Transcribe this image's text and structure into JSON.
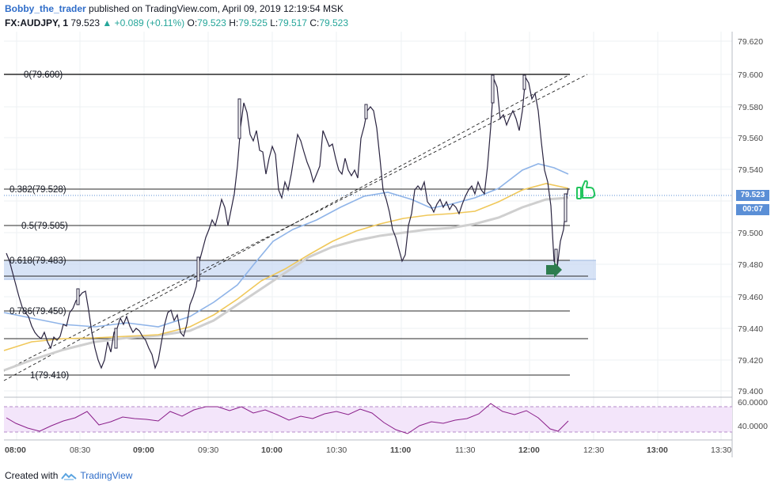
{
  "header": {
    "author": "Bobby_the_trader",
    "published": "published on TradingView.com, April 09, 2019 12:19:54 MSK",
    "symbol": "FX:AUDJPY, 1",
    "last": "79.523",
    "change": "▲ +0.089 (+0.11%)",
    "o_label": "O:",
    "o": "79.523",
    "h_label": "H:",
    "h": "79.525",
    "l_label": "L:",
    "l": "79.517",
    "c_label": "C:",
    "c": "79.523"
  },
  "price_axis": [
    "79.620",
    "79.600",
    "79.580",
    "79.560",
    "79.540",
    "79.500",
    "79.480",
    "79.460",
    "79.440",
    "79.420",
    "79.400"
  ],
  "price_tag": {
    "price": "79.523",
    "countdown": "00:07"
  },
  "fib_levels": [
    {
      "label": "0(79.600)"
    },
    {
      "label": "0.382(79.528)"
    },
    {
      "label": "0.5(79.505)"
    },
    {
      "label": "0.618(79.483)"
    },
    {
      "label": "0.786(79.450)"
    },
    {
      "label": "1(79.410)"
    }
  ],
  "rsi_axis": [
    "60.0000",
    "40.0000"
  ],
  "time_axis": [
    "08:00",
    "08:30",
    "09:00",
    "09:30",
    "10:00",
    "10:30",
    "11:00",
    "11:30",
    "12:00",
    "12:30",
    "13:00",
    "13:30"
  ],
  "footer": {
    "created_with": "Created with",
    "brand": "TradingView"
  },
  "colors": {
    "candle_up": "#ffffff",
    "candle_down": "#2a2440",
    "ma_blue": "#8fb4e8",
    "ma_yellow": "#f0c85a",
    "ma_grey": "#cfcfcf",
    "zone": "#c9d9f3",
    "rsi_fill": "#f3e5fa",
    "rsi_line": "#8a1f8a",
    "price_tag": "#5b8fd6",
    "thumb": "#22c55e",
    "arrow": "#2e7d4f"
  }
}
